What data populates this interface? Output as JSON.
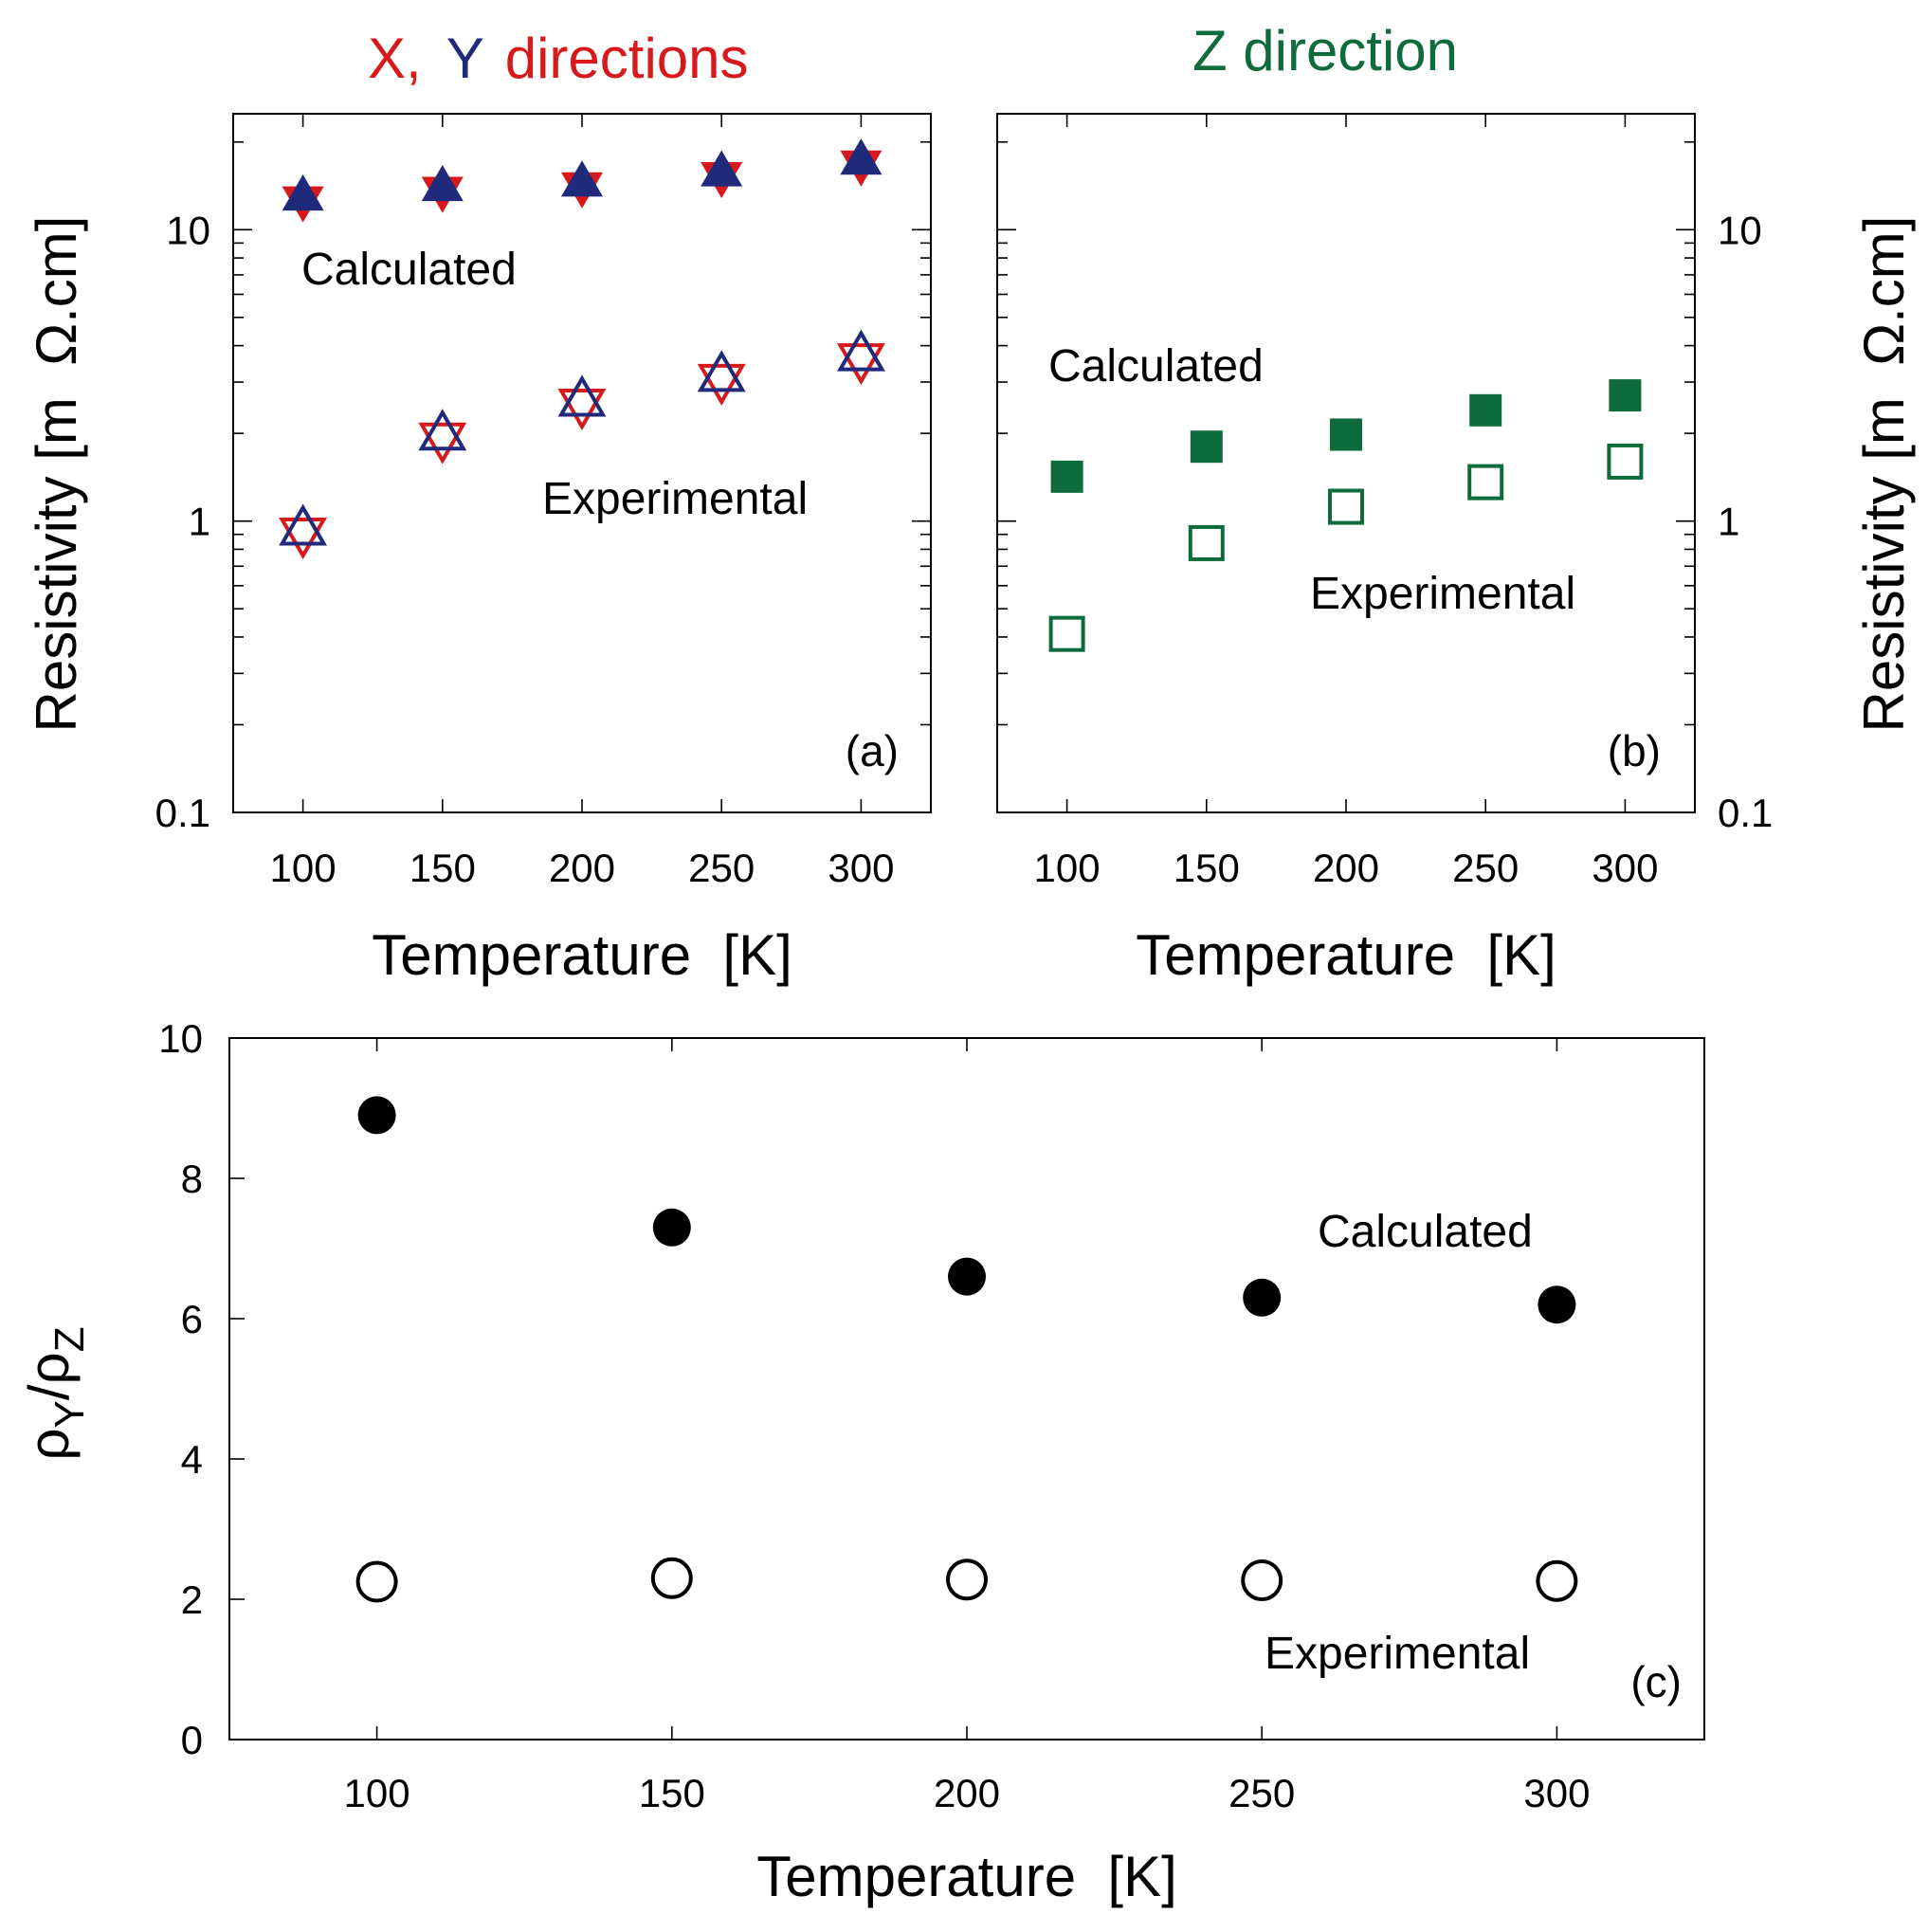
{
  "colors": {
    "x_red": "#d7191c",
    "y_blue": "#1f2a7a",
    "z_green": "#0e6b3c",
    "black": "#000000"
  },
  "titles": {
    "a_x": "X,",
    "a_y": "Y",
    "a_rest": "directions",
    "b": "Z direction"
  },
  "chart_data": [
    {
      "id": "a",
      "type": "scatter",
      "panel_label": "(a)",
      "xlabel": "Temperature  [K]",
      "ylabel": "Resistivity [m  Ω.cm]",
      "yscale": "log",
      "ylim": [
        0.1,
        25
      ],
      "xlim": [
        75,
        325
      ],
      "x": [
        100,
        150,
        200,
        250,
        300
      ],
      "xticks": [
        "100",
        "150",
        "200",
        "250",
        "300"
      ],
      "yticks": [
        "0.1",
        "1",
        "10"
      ],
      "annotations": [
        "Calculated",
        "Experimental"
      ],
      "series": [
        {
          "name": "X calculated",
          "marker": "triangle-down",
          "filled": true,
          "color": "#d7191c",
          "values": [
            12.8,
            13.8,
            14.3,
            15.5,
            17.0
          ]
        },
        {
          "name": "Y calculated",
          "marker": "triangle-up",
          "filled": true,
          "color": "#1f2a7a",
          "values": [
            12.8,
            13.8,
            14.3,
            15.5,
            17.0
          ]
        },
        {
          "name": "X experimental",
          "marker": "triangle-down",
          "filled": false,
          "color": "#d7191c",
          "values": [
            0.92,
            1.95,
            2.55,
            3.1,
            3.65
          ]
        },
        {
          "name": "Y experimental",
          "marker": "triangle-up",
          "filled": false,
          "color": "#1f2a7a",
          "values": [
            0.92,
            1.95,
            2.55,
            3.1,
            3.65
          ]
        }
      ]
    },
    {
      "id": "b",
      "type": "scatter",
      "panel_label": "(b)",
      "xlabel": "Temperature  [K]",
      "ylabel": "Resistivity [m  Ω.cm]",
      "yscale": "log",
      "ylim": [
        0.1,
        25
      ],
      "xlim": [
        75,
        325
      ],
      "x": [
        100,
        150,
        200,
        250,
        300
      ],
      "xticks": [
        "100",
        "150",
        "200",
        "250",
        "300"
      ],
      "yticks": [
        "0.1",
        "1",
        "10"
      ],
      "annotations": [
        "Calculated",
        "Experimental"
      ],
      "series": [
        {
          "name": "Z calculated",
          "marker": "square",
          "filled": true,
          "color": "#0e6b3c",
          "values": [
            1.42,
            1.8,
            1.98,
            2.4,
            2.7
          ]
        },
        {
          "name": "Z experimental",
          "marker": "square",
          "filled": false,
          "color": "#0e6b3c",
          "values": [
            0.41,
            0.84,
            1.12,
            1.36,
            1.6
          ]
        }
      ]
    },
    {
      "id": "c",
      "type": "scatter",
      "panel_label": "(c)",
      "xlabel": "Temperature  [K]",
      "ylabel_parts": [
        "ρ",
        "Y",
        "/ρ",
        "Z"
      ],
      "yscale": "linear",
      "ylim": [
        0,
        10
      ],
      "xlim": [
        75,
        325
      ],
      "x": [
        100,
        150,
        200,
        250,
        300
      ],
      "xticks": [
        "100",
        "150",
        "200",
        "250",
        "300"
      ],
      "yticks": [
        "0",
        "2",
        "4",
        "6",
        "8",
        "10"
      ],
      "annotations": [
        "Calculated",
        "Experimental"
      ],
      "series": [
        {
          "name": "Calculated",
          "marker": "circle",
          "filled": true,
          "color": "#000000",
          "values": [
            8.9,
            7.3,
            6.6,
            6.3,
            6.2
          ]
        },
        {
          "name": "Experimental",
          "marker": "circle",
          "filled": false,
          "color": "#000000",
          "values": [
            2.25,
            2.3,
            2.28,
            2.27,
            2.26
          ]
        }
      ]
    }
  ]
}
